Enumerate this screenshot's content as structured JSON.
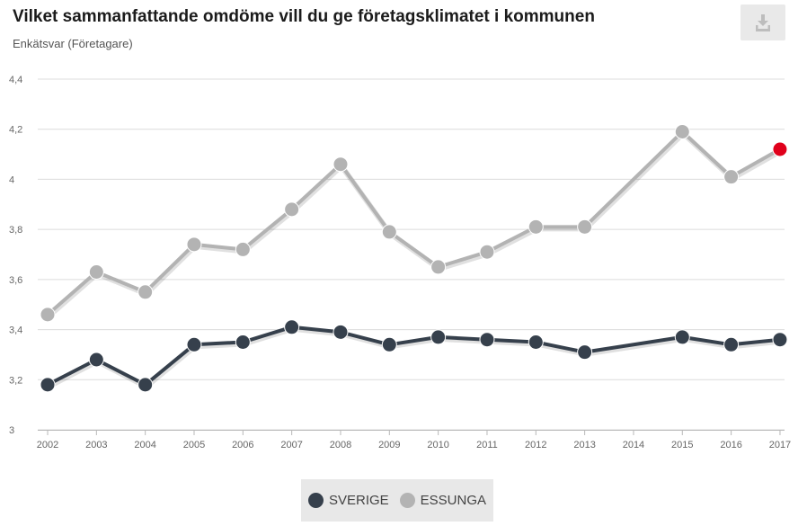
{
  "header": {
    "title": "Vilket sammanfattande omdöme vill du ge företagsklimatet i kommunen",
    "subtitle": "Enkätsvar (Företagare)",
    "download_icon": "download-icon"
  },
  "colors": {
    "sverige": "#36404c",
    "essunga": "#b3b3b3",
    "highlight": "#e0001b",
    "grid": "#dcdcdc"
  },
  "chart_data": {
    "type": "line",
    "title": "Vilket sammanfattande omdöme vill du ge företagsklimatet i kommunen",
    "subtitle": "Enkätsvar (Företagare)",
    "x": [
      "2002",
      "2003",
      "2004",
      "2005",
      "2006",
      "2007",
      "2008",
      "2009",
      "2010",
      "2011",
      "2012",
      "2013",
      "2014",
      "2015",
      "2016",
      "2017"
    ],
    "y_ticks": [
      "3",
      "3,2",
      "3,4",
      "3,6",
      "3,8",
      "4",
      "4,2",
      "4,4"
    ],
    "ylim": [
      3,
      4.4
    ],
    "grid": true,
    "legend_position": "bottom-center",
    "series": [
      {
        "name": "SVERIGE",
        "values": [
          3.18,
          3.28,
          3.18,
          3.34,
          3.35,
          3.41,
          3.39,
          3.34,
          3.37,
          3.36,
          3.35,
          3.31,
          null,
          3.37,
          3.34,
          3.36
        ]
      },
      {
        "name": "ESSUNGA",
        "values": [
          3.46,
          3.63,
          3.55,
          3.74,
          3.72,
          3.88,
          4.06,
          3.79,
          3.65,
          3.71,
          3.81,
          3.81,
          null,
          4.19,
          4.01,
          4.12
        ],
        "highlight_last": true
      }
    ]
  },
  "legend": {
    "items": [
      {
        "label": "SVERIGE",
        "color": "#36404c"
      },
      {
        "label": "ESSUNGA",
        "color": "#b3b3b3"
      }
    ]
  }
}
